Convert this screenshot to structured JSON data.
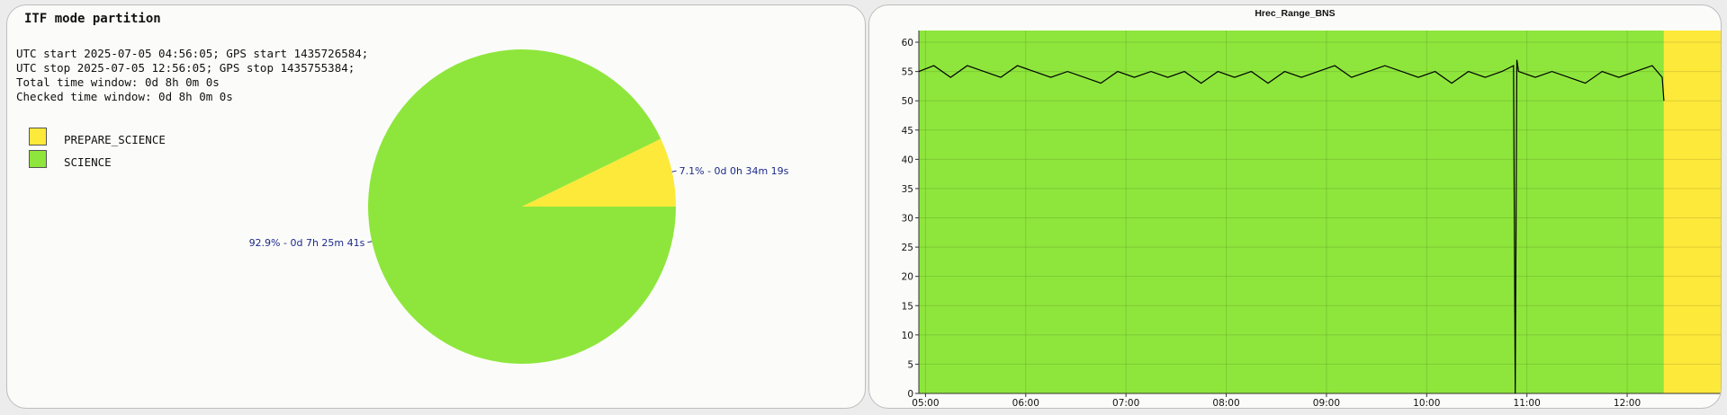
{
  "left_panel": {
    "title": "ITF mode partition",
    "info_lines": [
      "UTC start 2025-07-05 04:56:05; GPS start 1435726584;",
      "UTC stop 2025-07-05 12:56:05; GPS stop 1435755384;",
      "Total time window: 0d 8h 0m 0s",
      "Checked time window: 0d 8h 0m 0s"
    ]
  },
  "right_panel": {
    "title": "Hrec_Range_BNS"
  },
  "colors": {
    "science": "#8ee63c",
    "prepare_science": "#fde93a",
    "trace": "#000000",
    "pie_label": "#1d2a8c"
  },
  "chart_data": [
    {
      "type": "pie",
      "legend": [
        "PREPARE_SCIENCE",
        "SCIENCE"
      ],
      "slices": [
        {
          "name": "PREPARE_SCIENCE",
          "value": 7.1,
          "label": "7.1% - 0d 0h 34m 19s",
          "color": "#fde93a"
        },
        {
          "name": "SCIENCE",
          "value": 92.9,
          "label": "92.9% - 0d 7h 25m 41s",
          "color": "#8ee63c"
        }
      ]
    },
    {
      "type": "line",
      "title": "Hrec_Range_BNS",
      "x_range": [
        "04:56",
        "12:56"
      ],
      "x_ticks": [
        "05:00",
        "06:00",
        "07:00",
        "08:00",
        "09:00",
        "10:00",
        "11:00",
        "12:00"
      ],
      "y_range": [
        0,
        62
      ],
      "y_ticks": [
        0,
        5,
        10,
        15,
        20,
        25,
        30,
        35,
        40,
        45,
        50,
        55,
        60
      ],
      "grid": true,
      "background_segments": [
        {
          "start": "04:56",
          "end": "12:22",
          "mode": "SCIENCE",
          "color": "#8ee63c"
        },
        {
          "start": "12:22",
          "end": "12:56",
          "mode": "PREPARE_SCIENCE",
          "color": "#fde93a"
        }
      ],
      "series": [
        {
          "x": [
            "04:56",
            "05:05",
            "05:15",
            "05:25",
            "05:35",
            "05:45",
            "05:55",
            "06:05",
            "06:15",
            "06:25",
            "06:35",
            "06:45",
            "06:55",
            "07:05",
            "07:15",
            "07:25",
            "07:35",
            "07:45",
            "07:55",
            "08:05",
            "08:15",
            "08:25",
            "08:35",
            "08:45",
            "08:55",
            "09:05",
            "09:15",
            "09:25",
            "09:35",
            "09:45",
            "09:55",
            "10:05",
            "10:15",
            "10:25",
            "10:35",
            "10:45",
            "10:52",
            "10:53",
            "10:54",
            "10:55",
            "11:05",
            "11:15",
            "11:25",
            "11:35",
            "11:45",
            "11:55",
            "12:05",
            "12:15",
            "12:21",
            "12:22"
          ],
          "y": [
            55,
            56,
            54,
            56,
            55,
            54,
            56,
            55,
            54,
            55,
            54,
            53,
            55,
            54,
            55,
            54,
            55,
            53,
            55,
            54,
            55,
            53,
            55,
            54,
            55,
            56,
            54,
            55,
            56,
            55,
            54,
            55,
            53,
            55,
            54,
            55,
            56,
            0,
            57,
            55,
            54,
            55,
            54,
            53,
            55,
            54,
            55,
            56,
            54,
            50
          ]
        }
      ]
    }
  ]
}
